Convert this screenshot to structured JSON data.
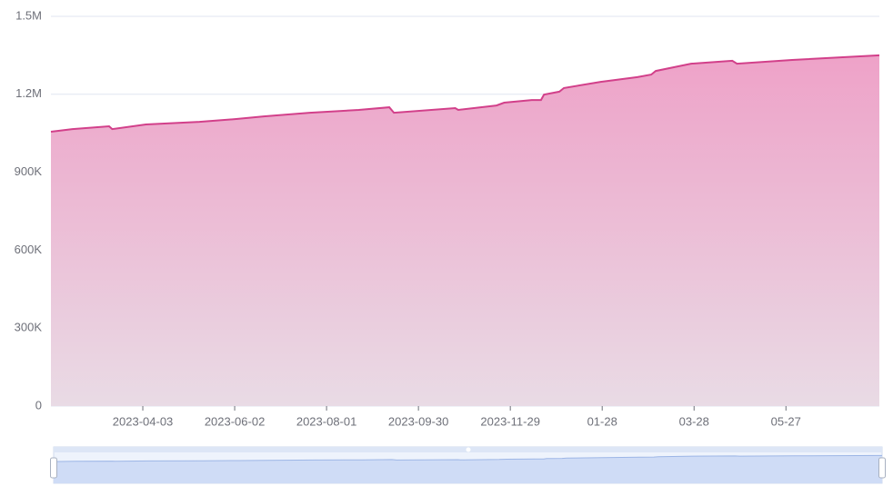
{
  "chart_data": {
    "type": "line",
    "area": true,
    "x": [
      0,
      14,
      38,
      40,
      62,
      97,
      121,
      139,
      169,
      201,
      221,
      224,
      264,
      266,
      291,
      296,
      314,
      320,
      322,
      332,
      335,
      359,
      383,
      392,
      395,
      418,
      445,
      448,
      484,
      541
    ],
    "series": [
      {
        "color": "#d2408a",
        "values": [
          1056000,
          1066000,
          1077000,
          1066000,
          1084000,
          1094000,
          1105000,
          1115000,
          1129000,
          1140000,
          1150000,
          1129000,
          1147000,
          1140000,
          1157000,
          1168000,
          1178000,
          1178000,
          1199000,
          1210000,
          1224000,
          1248000,
          1266000,
          1276000,
          1290000,
          1318000,
          1329000,
          1318000,
          1332000,
          1350000
        ]
      }
    ],
    "xlim": [
      0,
      541
    ],
    "xticks": [
      {
        "value": 60,
        "label": "2023-04-03"
      },
      {
        "value": 120,
        "label": "2023-06-02"
      },
      {
        "value": 180,
        "label": "2023-08-01"
      },
      {
        "value": 240,
        "label": "2023-09-30"
      },
      {
        "value": 300,
        "label": "2023-11-29"
      },
      {
        "value": 360,
        "label": "01-28"
      },
      {
        "value": 420,
        "label": "03-28"
      },
      {
        "value": 480,
        "label": "05-27"
      }
    ],
    "ylim": [
      0,
      1500000
    ],
    "yticks": [
      0,
      {
        "value": 300000,
        "label": "300K"
      },
      {
        "value": 600000,
        "label": "600K"
      },
      {
        "value": 900000,
        "label": "900K"
      },
      {
        "value": 1200000,
        "label": "1.2M"
      },
      {
        "value": 1500000,
        "label": "1.5M"
      }
    ],
    "grid": true
  }
}
